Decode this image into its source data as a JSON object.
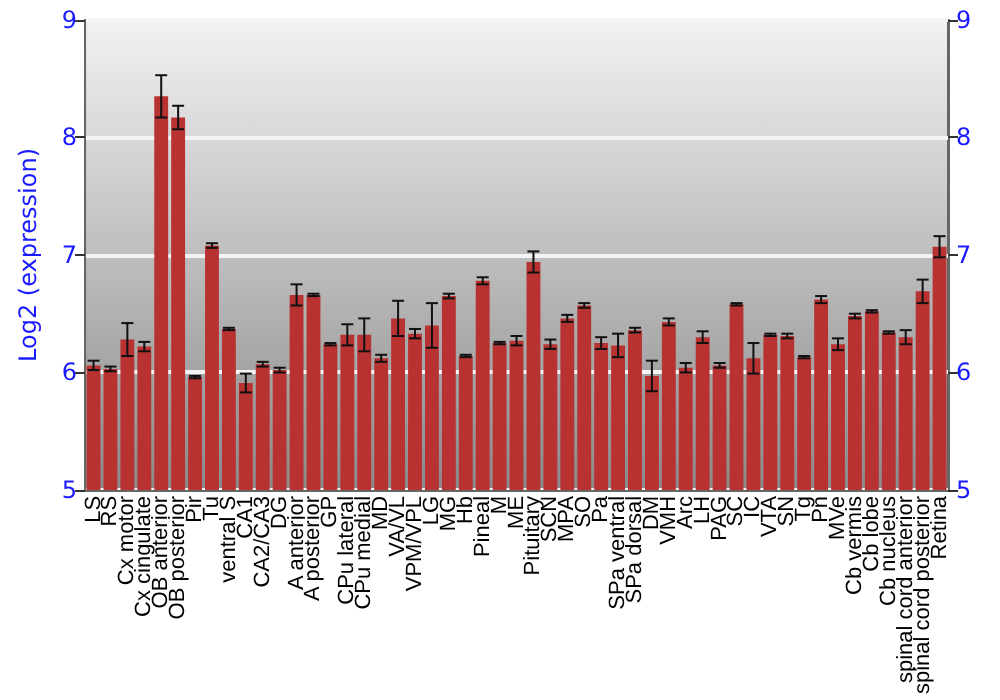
{
  "chart_data": {
    "type": "bar",
    "ylabel": "Log2 (expression)",
    "categories": [
      "LS",
      "RS",
      "Cx motor",
      "Cx cingulate",
      "OB anterior",
      "OB posterior",
      "Pir",
      "Tu",
      "ventral S",
      "CA1",
      "CA2/CA3",
      "DG",
      "A anterior",
      "A posterior",
      "GP",
      "CPu lateral",
      "CPu medial",
      "MD",
      "VA/VL",
      "VPM/VPL",
      "LG",
      "MG",
      "Hb",
      "Pineal",
      "M",
      "ME",
      "Pituitary",
      "SCN",
      "MPA",
      "SO",
      "Pa",
      "SPa ventral",
      "SPa dorsal",
      "DM",
      "VMH",
      "Arc",
      "LH",
      "PAG",
      "SC",
      "IC",
      "VTA",
      "SN",
      "Tg",
      "Pn",
      "MVe",
      "Cb vermis",
      "Cb lobe",
      "Cb nucleus",
      "spinal cord anterior",
      "spinal cord posterior",
      "Retina"
    ],
    "values": [
      6.06,
      6.03,
      6.28,
      6.22,
      8.35,
      8.17,
      5.96,
      7.08,
      6.37,
      5.91,
      6.07,
      6.02,
      6.66,
      6.66,
      6.24,
      6.32,
      6.32,
      6.12,
      6.46,
      6.33,
      6.4,
      6.65,
      6.14,
      6.78,
      6.25,
      6.27,
      6.94,
      6.24,
      6.46,
      6.57,
      6.25,
      6.23,
      6.36,
      5.97,
      6.43,
      6.04,
      6.3,
      6.06,
      6.58,
      6.12,
      6.32,
      6.31,
      6.13,
      6.62,
      6.24,
      6.48,
      6.52,
      6.34,
      6.3,
      6.69,
      7.07
    ],
    "errors": [
      0.04,
      0.02,
      0.14,
      0.04,
      0.18,
      0.1,
      0.01,
      0.02,
      0.01,
      0.08,
      0.02,
      0.02,
      0.09,
      0.01,
      0.01,
      0.09,
      0.14,
      0.03,
      0.15,
      0.04,
      0.19,
      0.02,
      0.01,
      0.03,
      0.01,
      0.04,
      0.09,
      0.04,
      0.03,
      0.02,
      0.05,
      0.1,
      0.02,
      0.13,
      0.03,
      0.04,
      0.05,
      0.02,
      0.01,
      0.13,
      0.01,
      0.02,
      0.01,
      0.03,
      0.05,
      0.02,
      0.01,
      0.01,
      0.06,
      0.1,
      0.09
    ],
    "color": "#b83232",
    "ylim": [
      5,
      9
    ],
    "yticks": [
      5,
      6,
      7,
      8,
      9
    ],
    "y2lim": [
      5,
      9
    ],
    "y2ticks": [
      5,
      6,
      7,
      8,
      9
    ],
    "grid": "y"
  }
}
